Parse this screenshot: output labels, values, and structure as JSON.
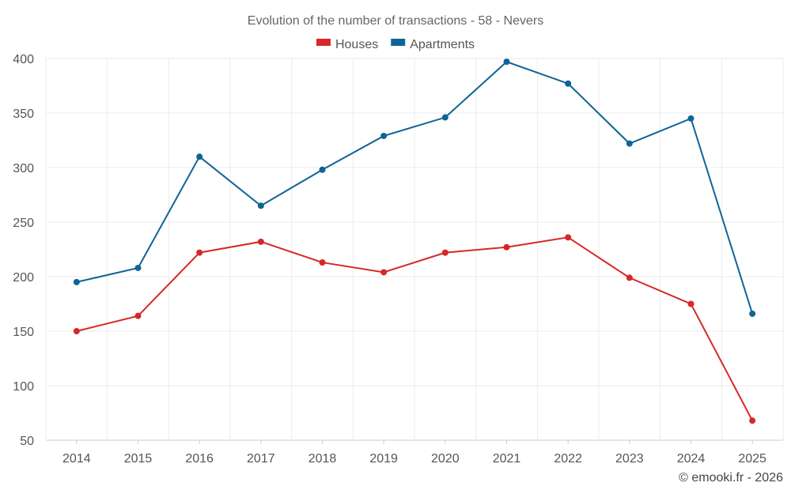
{
  "chart_data": {
    "type": "line",
    "title": "Evolution of the number of transactions - 58 - Nevers",
    "categories": [
      "2014",
      "2015",
      "2016",
      "2017",
      "2018",
      "2019",
      "2020",
      "2021",
      "2022",
      "2023",
      "2024",
      "2025"
    ],
    "series": [
      {
        "name": "Houses",
        "color": "#d62828",
        "values": [
          150,
          164,
          222,
          232,
          213,
          204,
          222,
          227,
          236,
          199,
          175,
          68
        ]
      },
      {
        "name": "Apartments",
        "color": "#0f6496",
        "values": [
          195,
          208,
          310,
          265,
          298,
          329,
          346,
          397,
          377,
          322,
          345,
          166
        ]
      }
    ],
    "ylim": [
      50,
      400
    ],
    "yticks": [
      50,
      100,
      150,
      200,
      250,
      300,
      350,
      400
    ],
    "xlabel": "",
    "ylabel": "",
    "grid": true,
    "legend": "top-center"
  },
  "credit": "© emooki.fr - 2026"
}
